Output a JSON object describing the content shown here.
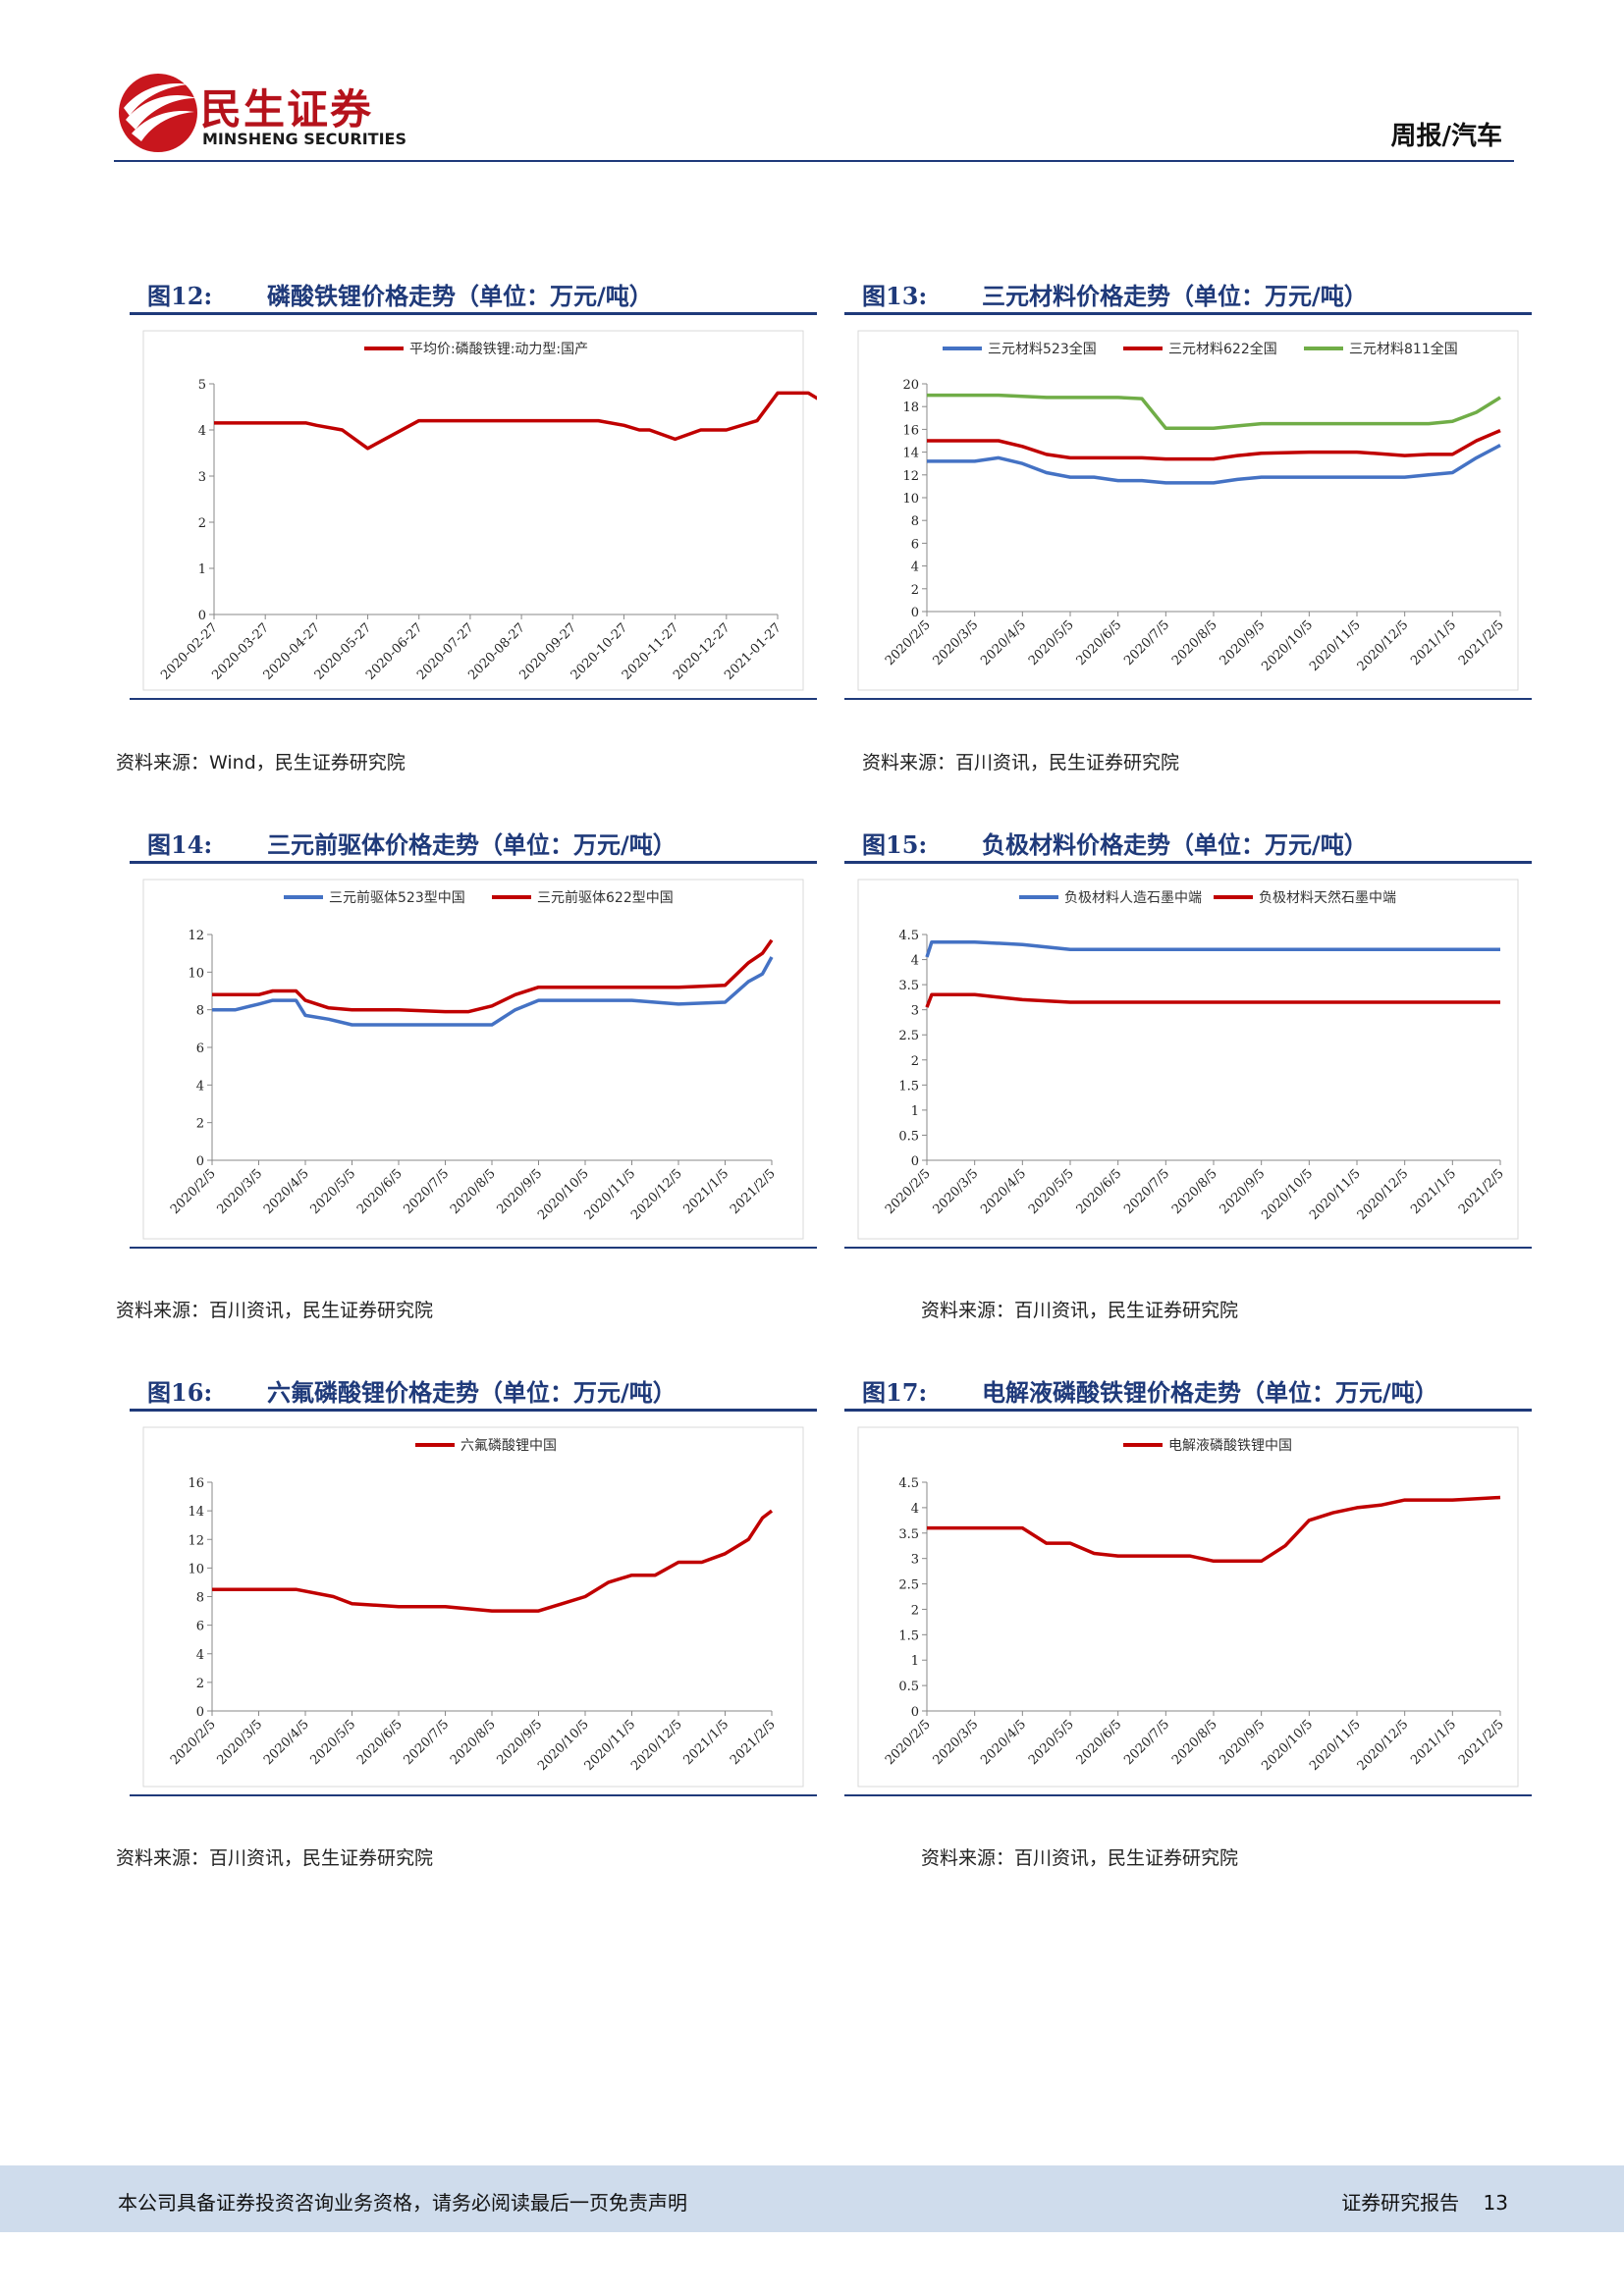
{
  "header": {
    "brand_cn": "民生证券",
    "brand_en": "MINSHENG SECURITIES",
    "section": "周报/汽车",
    "brand_color": "#b5121b"
  },
  "footer": {
    "disclaimer": "本公司具备证券投资咨询业务资格，请务必阅读最后一页免责声明",
    "report_type": "证券研究报告",
    "page": "13"
  },
  "figures": [
    {
      "num": "图12:",
      "name": "磷酸铁锂价格走势（单位：万元/吨）",
      "source": "资料来源：Wind，民生证券研究院"
    },
    {
      "num": "图13:",
      "name": "三元材料价格走势（单位：万元/吨）",
      "source": "资料来源：百川资讯，民生证券研究院"
    },
    {
      "num": "图14:",
      "name": "三元前驱体价格走势（单位：万元/吨）",
      "source": "资料来源：百川资讯，民生证券研究院"
    },
    {
      "num": "图15:",
      "name": "负极材料价格走势（单位：万元/吨）",
      "source": "资料来源：百川资讯，民生证券研究院"
    },
    {
      "num": "图16:",
      "name": "六氟磷酸锂价格走势（单位：万元/吨）",
      "source": "资料来源：百川资讯，民生证券研究院"
    },
    {
      "num": "图17:",
      "name": "电解液磷酸铁锂价格走势（单位：万元/吨）",
      "source": "资料来源：百川资讯，民生证券研究院"
    }
  ],
  "chart_data": [
    {
      "type": "line",
      "ylim": [
        0,
        5
      ],
      "yticks": [
        0,
        1,
        2,
        3,
        4,
        5
      ],
      "categories": [
        "2020-02-27",
        "2020-03-27",
        "2020-04-27",
        "2020-05-27",
        "2020-06-27",
        "2020-07-27",
        "2020-08-27",
        "2020-09-27",
        "2020-10-27",
        "2020-11-27",
        "2020-12-27",
        "2021-01-27"
      ],
      "x": [
        0,
        0.5,
        1,
        1.5,
        1.8,
        2,
        2.5,
        3,
        4,
        5,
        6,
        7,
        7.5,
        8,
        8.3,
        8.5,
        9,
        9.5,
        10,
        10.6,
        11,
        11.3,
        11.5,
        11.6,
        11.9
      ],
      "series": [
        {
          "name": "平均价:磷酸铁锂:动力型:国产",
          "color": "#c00000",
          "values": [
            4.15,
            4.15,
            4.15,
            4.15,
            4.15,
            4.1,
            4.0,
            3.6,
            4.2,
            4.2,
            4.2,
            4.2,
            4.2,
            4.1,
            4.0,
            4.0,
            3.8,
            4.0,
            4.0,
            4.2,
            4.8,
            4.8,
            4.8,
            4.8,
            4.6
          ]
        }
      ]
    },
    {
      "type": "line",
      "ylim": [
        0,
        20
      ],
      "yticks": [
        0,
        2,
        4,
        6,
        8,
        10,
        12,
        14,
        16,
        18,
        20
      ],
      "categories": [
        "2020/2/5",
        "2020/3/5",
        "2020/4/5",
        "2020/5/5",
        "2020/6/5",
        "2020/7/5",
        "2020/8/5",
        "2020/9/5",
        "2020/10/5",
        "2020/11/5",
        "2020/12/5",
        "2021/1/5",
        "2021/2/5"
      ],
      "x": [
        0,
        0.5,
        1,
        1.5,
        2,
        2.5,
        3,
        3.5,
        4,
        4.5,
        5,
        5.5,
        6,
        6.5,
        7,
        8,
        9,
        10,
        10.5,
        11,
        11.5,
        12
      ],
      "series": [
        {
          "name": "三元材料523全国",
          "color": "#4472c4",
          "values": [
            13.2,
            13.2,
            13.2,
            13.5,
            13,
            12.2,
            11.8,
            11.8,
            11.5,
            11.5,
            11.3,
            11.3,
            11.3,
            11.6,
            11.8,
            11.8,
            11.8,
            11.8,
            12,
            12.2,
            13.5,
            14.6
          ]
        },
        {
          "name": "三元材料622全国",
          "color": "#c00000",
          "values": [
            15,
            15,
            15,
            15,
            14.5,
            13.8,
            13.5,
            13.5,
            13.5,
            13.5,
            13.4,
            13.4,
            13.4,
            13.7,
            13.9,
            14,
            14,
            13.7,
            13.8,
            13.8,
            15,
            15.9
          ]
        },
        {
          "name": "三元材料811全国",
          "color": "#70ad47",
          "values": [
            19,
            19,
            19,
            19,
            18.9,
            18.8,
            18.8,
            18.8,
            18.8,
            18.7,
            16.1,
            16.1,
            16.1,
            16.3,
            16.5,
            16.5,
            16.5,
            16.5,
            16.5,
            16.7,
            17.5,
            18.8
          ]
        }
      ]
    },
    {
      "type": "line",
      "ylim": [
        0,
        12
      ],
      "yticks": [
        0,
        2,
        4,
        6,
        8,
        10,
        12
      ],
      "categories": [
        "2020/2/5",
        "2020/3/5",
        "2020/4/5",
        "2020/5/5",
        "2020/6/5",
        "2020/7/5",
        "2020/8/5",
        "2020/9/5",
        "2020/10/5",
        "2020/11/5",
        "2020/12/5",
        "2021/1/5",
        "2021/2/5"
      ],
      "x": [
        0,
        0.5,
        1,
        1.3,
        1.8,
        2,
        2.5,
        3,
        4,
        5,
        5.5,
        6,
        6.5,
        7,
        8,
        9,
        10,
        11,
        11.5,
        11.8,
        12
      ],
      "series": [
        {
          "name": "三元前驱体523型中国",
          "color": "#4472c4",
          "values": [
            8,
            8,
            8.3,
            8.5,
            8.5,
            7.7,
            7.5,
            7.2,
            7.2,
            7.2,
            7.2,
            7.2,
            8,
            8.5,
            8.5,
            8.5,
            8.3,
            8.4,
            9.5,
            9.9,
            10.8
          ]
        },
        {
          "name": "三元前驱体622型中国",
          "color": "#c00000",
          "values": [
            8.8,
            8.8,
            8.8,
            9,
            9,
            8.5,
            8.1,
            8,
            8,
            7.9,
            7.9,
            8.2,
            8.8,
            9.2,
            9.2,
            9.2,
            9.2,
            9.3,
            10.5,
            11,
            11.7
          ]
        }
      ]
    },
    {
      "type": "line",
      "ylim": [
        0,
        4.5
      ],
      "yticks": [
        0,
        0.5,
        1,
        1.5,
        2,
        2.5,
        3,
        3.5,
        4,
        4.5
      ],
      "categories": [
        "2020/2/5",
        "2020/3/5",
        "2020/4/5",
        "2020/5/5",
        "2020/6/5",
        "2020/7/5",
        "2020/8/5",
        "2020/9/5",
        "2020/10/5",
        "2020/11/5",
        "2020/12/5",
        "2021/1/5",
        "2021/2/5"
      ],
      "x": [
        0,
        0.1,
        1,
        2,
        3,
        4,
        6,
        8,
        10,
        12
      ],
      "series": [
        {
          "name": "负极材料人造石墨中端",
          "color": "#4472c4",
          "values": [
            4.05,
            4.35,
            4.35,
            4.3,
            4.2,
            4.2,
            4.2,
            4.2,
            4.2,
            4.2
          ]
        },
        {
          "name": "负极材料天然石墨中端",
          "color": "#c00000",
          "values": [
            3.05,
            3.3,
            3.3,
            3.2,
            3.15,
            3.15,
            3.15,
            3.15,
            3.15,
            3.15
          ]
        }
      ]
    },
    {
      "type": "line",
      "ylim": [
        0,
        16
      ],
      "yticks": [
        0,
        2,
        4,
        6,
        8,
        10,
        12,
        14,
        16
      ],
      "categories": [
        "2020/2/5",
        "2020/3/5",
        "2020/4/5",
        "2020/5/5",
        "2020/6/5",
        "2020/7/5",
        "2020/8/5",
        "2020/9/5",
        "2020/10/5",
        "2020/11/5",
        "2020/12/5",
        "2021/1/5",
        "2021/2/5"
      ],
      "x": [
        0,
        1,
        1.8,
        2.6,
        3,
        4,
        5,
        6,
        6.5,
        7,
        7.5,
        8,
        8.5,
        9,
        9.5,
        10,
        10.5,
        11,
        11.5,
        11.8,
        12
      ],
      "series": [
        {
          "name": "六氟磷酸锂中国",
          "color": "#c00000",
          "values": [
            8.5,
            8.5,
            8.5,
            8.0,
            7.5,
            7.3,
            7.3,
            7.0,
            7.0,
            7.0,
            7.5,
            8.0,
            9.0,
            9.5,
            9.5,
            10.4,
            10.4,
            11.0,
            12.0,
            13.5,
            14.0
          ]
        }
      ]
    },
    {
      "type": "line",
      "ylim": [
        0,
        4.5
      ],
      "yticks": [
        0,
        0.5,
        1,
        1.5,
        2,
        2.5,
        3,
        3.5,
        4,
        4.5
      ],
      "categories": [
        "2020/2/5",
        "2020/3/5",
        "2020/4/5",
        "2020/5/5",
        "2020/6/5",
        "2020/7/5",
        "2020/8/5",
        "2020/9/5",
        "2020/10/5",
        "2020/11/5",
        "2020/12/5",
        "2021/1/5",
        "2021/2/5"
      ],
      "x": [
        0,
        1,
        2,
        2.5,
        3,
        3.5,
        4,
        5,
        5.5,
        6,
        7,
        7.5,
        8,
        8.5,
        9,
        9.5,
        10,
        11,
        12
      ],
      "series": [
        {
          "name": "电解液磷酸铁锂中国",
          "color": "#c00000",
          "values": [
            3.6,
            3.6,
            3.6,
            3.3,
            3.3,
            3.1,
            3.05,
            3.05,
            3.05,
            2.95,
            2.95,
            3.25,
            3.75,
            3.9,
            4.0,
            4.05,
            4.15,
            4.15,
            4.2
          ]
        }
      ]
    }
  ]
}
